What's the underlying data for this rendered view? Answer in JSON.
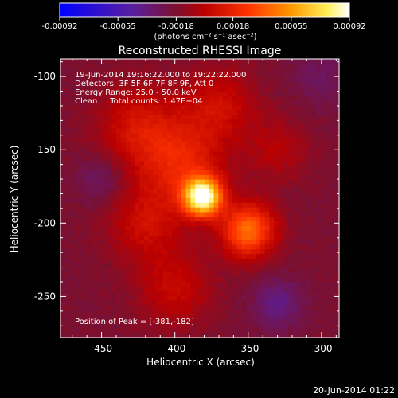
{
  "chart_data": {
    "type": "heatmap",
    "title": "Reconstructed RHESSI Image",
    "xlabel": "Heliocentric X (arcsec)",
    "ylabel": "Heliocentric Y (arcsec)",
    "xlim": [
      -478,
      -288
    ],
    "ylim": [
      -278,
      -88
    ],
    "xticks": [
      -450,
      -400,
      -350,
      -300
    ],
    "yticks": [
      -100,
      -150,
      -200,
      -250
    ],
    "colorbar": {
      "min": -0.00092,
      "max": 0.00092,
      "ticks": [
        -0.00092,
        -0.00055,
        -0.00018,
        0.00018,
        0.00055,
        0.00092
      ],
      "tick_labels": [
        "-0.00092",
        "-0.00055",
        "-0.00018",
        "0.00018",
        "0.00055",
        "0.00092"
      ],
      "unit_label": "(photons cm⁻² s⁻¹ asec⁻²)"
    },
    "annotations": [
      "19-Jun-2014 19:16:22.000 to 19:22:22.000",
      "Detectors: 3F 5F 6F 7F 8F 9F, Att 0",
      "Energy Range: 25.0 - 50.0 keV",
      "Clean     Total counts: 1.47E+04"
    ],
    "peak_label": "Position of Peak = [-381,-182]",
    "sources": [
      {
        "x": -381,
        "y": -182,
        "sigma": 9,
        "amp": 1.0
      },
      {
        "x": -350,
        "y": -205,
        "sigma": 13,
        "amp": 0.55
      },
      {
        "x": -395,
        "y": -160,
        "sigma": 20,
        "amp": 0.3
      },
      {
        "x": -425,
        "y": -135,
        "sigma": 20,
        "amp": 0.25
      },
      {
        "x": -420,
        "y": -200,
        "sigma": 18,
        "amp": 0.22
      },
      {
        "x": -370,
        "y": -120,
        "sigma": 18,
        "amp": 0.22
      },
      {
        "x": -330,
        "y": -150,
        "sigma": 15,
        "amp": 0.15
      },
      {
        "x": -400,
        "y": -245,
        "sigma": 18,
        "amp": 0.2
      },
      {
        "x": -330,
        "y": -255,
        "sigma": 12,
        "amp": -0.18
      },
      {
        "x": -450,
        "y": -170,
        "sigma": 12,
        "amp": -0.12
      },
      {
        "x": -300,
        "y": -100,
        "sigma": 15,
        "amp": -0.1
      }
    ]
  },
  "footer": {
    "timestamp": "20-Jun-2014 01:22"
  }
}
